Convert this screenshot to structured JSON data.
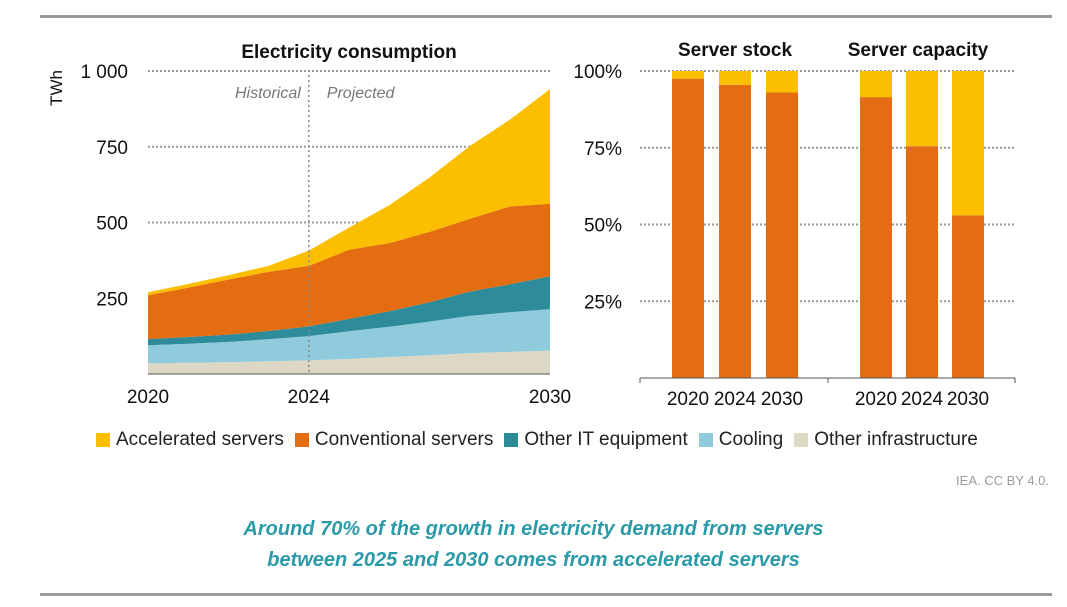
{
  "chart_data": [
    {
      "type": "area",
      "title": "Electricity consumption",
      "ylabel": "TWh",
      "ylim": [
        0,
        1000
      ],
      "yticks": [
        250,
        500,
        750,
        1000
      ],
      "ytick_labels": [
        "250",
        "500",
        "750",
        "1 000"
      ],
      "xlim": [
        2020,
        2030
      ],
      "xtick_labels": [
        "2020",
        "2024",
        "2030"
      ],
      "xticks": [
        2020,
        2024,
        2030
      ],
      "stacked": true,
      "divider_x": 2024,
      "annotations": {
        "left": "Historical",
        "right": "Projected"
      },
      "x": [
        2020,
        2021,
        2022,
        2023,
        2024,
        2025,
        2026,
        2027,
        2028,
        2029,
        2030
      ],
      "series": [
        {
          "name": "Other infrastructure",
          "values": [
            35,
            37,
            39,
            42,
            45,
            50,
            56,
            62,
            69,
            73,
            77
          ]
        },
        {
          "name": "Cooling",
          "values": [
            60,
            63,
            67,
            73,
            80,
            91,
            100,
            111,
            123,
            131,
            137
          ]
        },
        {
          "name": "Other IT equipment",
          "values": [
            20,
            22,
            24,
            27,
            32,
            41,
            51,
            64,
            80,
            92,
            108
          ]
        },
        {
          "name": "Conventional servers",
          "values": [
            145,
            163,
            182,
            195,
            200,
            228,
            225,
            232,
            240,
            257,
            240
          ]
        },
        {
          "name": "Accelerated servers",
          "values": [
            10,
            12,
            14,
            20,
            50,
            73,
            125,
            179,
            240,
            286,
            378
          ]
        }
      ]
    },
    {
      "type": "bar",
      "stacked": true,
      "title": "Server stock",
      "categories": [
        "2020",
        "2024",
        "2030"
      ],
      "ylim": [
        0,
        100
      ],
      "yticks": [
        25,
        50,
        75,
        100
      ],
      "ytick_labels": [
        "25%",
        "50%",
        "75%",
        "100%"
      ],
      "series": [
        {
          "name": "Conventional servers",
          "values": [
            97.5,
            95.5,
            93
          ]
        },
        {
          "name": "Accelerated servers",
          "values": [
            2.5,
            4.5,
            7
          ]
        }
      ]
    },
    {
      "type": "bar",
      "stacked": true,
      "title": "Server capacity",
      "categories": [
        "2020",
        "2024",
        "2030"
      ],
      "ylim": [
        0,
        100
      ],
      "series": [
        {
          "name": "Conventional servers",
          "values": [
            91.5,
            75.5,
            53
          ]
        },
        {
          "name": "Accelerated servers",
          "values": [
            8.5,
            24.5,
            47
          ]
        }
      ]
    }
  ],
  "colors": {
    "Accelerated servers": "#fbbf00",
    "Conventional servers": "#e56d11",
    "Other IT equipment": "#2e8b9a",
    "Cooling": "#8fcbdc",
    "Other infrastructure": "#ddd7c6"
  },
  "legend": {
    "items": [
      {
        "label": "Accelerated servers",
        "color": "#fbbf00"
      },
      {
        "label": "Conventional servers",
        "color": "#e56d11"
      },
      {
        "label": "Other IT equipment",
        "color": "#2e8b9a"
      },
      {
        "label": "Cooling",
        "color": "#8fcbdc"
      },
      {
        "label": "Other infrastructure",
        "color": "#ddd7c6"
      }
    ]
  },
  "source": "IEA. CC BY 4.0.",
  "caption": {
    "line1": "Around 70% of the growth in electricity demand from servers",
    "line2": "between 2025 and 2030 comes from accelerated servers"
  }
}
